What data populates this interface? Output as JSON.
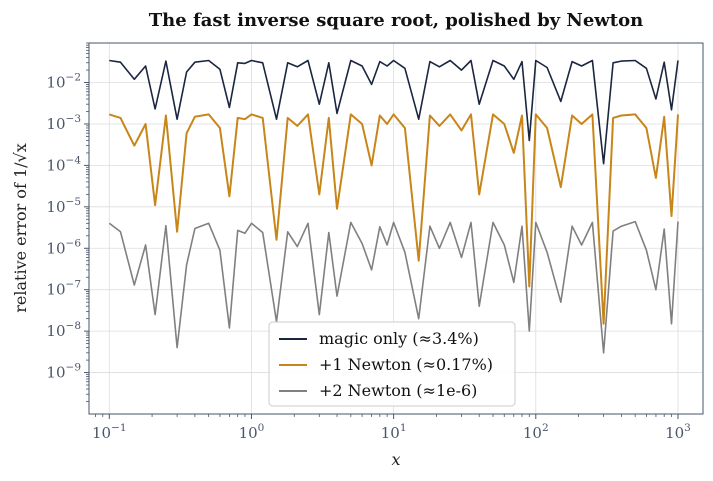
{
  "chart_data": {
    "type": "line",
    "title": "The fast inverse square root, polished by Newton",
    "xlabel": "x",
    "ylabel": "relative error of 1/√x",
    "xscale": "log",
    "yscale": "log",
    "xlim": [
      0.072,
      1500
    ],
    "ylim": [
      1e-10,
      0.09
    ],
    "grid": true,
    "legend_position": "lower center",
    "x_ticks": [
      {
        "base": "10",
        "exp": "−1",
        "value": 0.1
      },
      {
        "base": "10",
        "exp": "0",
        "value": 1
      },
      {
        "base": "10",
        "exp": "1",
        "value": 10
      },
      {
        "base": "10",
        "exp": "2",
        "value": 100
      },
      {
        "base": "10",
        "exp": "3",
        "value": 1000
      }
    ],
    "y_ticks": [
      {
        "base": "10",
        "exp": "−9",
        "value": 1e-09
      },
      {
        "base": "10",
        "exp": "−8",
        "value": 1e-08
      },
      {
        "base": "10",
        "exp": "−7",
        "value": 1e-07
      },
      {
        "base": "10",
        "exp": "−6",
        "value": 1e-06
      },
      {
        "base": "10",
        "exp": "−5",
        "value": 1e-05
      },
      {
        "base": "10",
        "exp": "−4",
        "value": 0.0001
      },
      {
        "base": "10",
        "exp": "−3",
        "value": 0.001
      },
      {
        "base": "10",
        "exp": "−2",
        "value": 0.01
      }
    ],
    "x": [
      0.1,
      0.12,
      0.15,
      0.18,
      0.21,
      0.25,
      0.3,
      0.35,
      0.4,
      0.5,
      0.6,
      0.7,
      0.8,
      0.9,
      1.0,
      1.2,
      1.5,
      1.8,
      2.1,
      2.5,
      3.0,
      3.5,
      4.0,
      5.0,
      6.0,
      7.0,
      8.0,
      9.0,
      10,
      12,
      15,
      18,
      21,
      25,
      30,
      35,
      40,
      50,
      60,
      70,
      80,
      90,
      100,
      120,
      150,
      180,
      210,
      250,
      300,
      350,
      400,
      500,
      600,
      700,
      800,
      900,
      1000
    ],
    "series": [
      {
        "name": "magic only (≈3.4%)",
        "color": "#1b2640",
        "values": [
          0.034,
          0.031,
          0.012,
          0.025,
          0.0023,
          0.033,
          0.0013,
          0.018,
          0.031,
          0.034,
          0.021,
          0.0025,
          0.03,
          0.029,
          0.034,
          0.03,
          0.0013,
          0.03,
          0.024,
          0.034,
          0.003,
          0.03,
          0.0018,
          0.034,
          0.025,
          0.009,
          0.032,
          0.025,
          0.034,
          0.022,
          0.0013,
          0.032,
          0.024,
          0.034,
          0.02,
          0.034,
          0.003,
          0.034,
          0.025,
          0.012,
          0.032,
          0.0004,
          0.034,
          0.023,
          0.0035,
          0.032,
          0.025,
          0.034,
          0.00011,
          0.03,
          0.033,
          0.034,
          0.022,
          0.004,
          0.031,
          0.0022,
          0.034
        ]
      },
      {
        "name": "+1 Newton (≈0.17%)",
        "color": "#c8861a",
        "values": [
          0.0017,
          0.0014,
          0.0003,
          0.001,
          1.1e-05,
          0.0016,
          2.5e-06,
          0.0006,
          0.0015,
          0.0017,
          0.0008,
          1.8e-05,
          0.0014,
          0.0013,
          0.0017,
          0.0014,
          1.6e-06,
          0.0014,
          0.0009,
          0.0017,
          2e-05,
          0.0014,
          9e-06,
          0.0017,
          0.001,
          0.0001,
          0.0016,
          0.001,
          0.0017,
          0.0008,
          5e-07,
          0.0016,
          0.0009,
          0.0017,
          0.0007,
          0.0017,
          2e-05,
          0.0017,
          0.001,
          0.0002,
          0.0016,
          1.2e-07,
          0.0017,
          0.0008,
          3e-05,
          0.0016,
          0.001,
          0.0017,
          1.5e-08,
          0.0014,
          0.0016,
          0.0017,
          0.0008,
          5e-05,
          0.0015,
          6e-06,
          0.0017
        ]
      },
      {
        "name": "+2 Newton (≈1e-6)",
        "color": "#808080",
        "values": [
          4e-06,
          2.5e-06,
          1.3e-07,
          1.2e-06,
          2.5e-08,
          3.5e-06,
          4e-09,
          4e-07,
          3e-06,
          4e-06,
          9e-07,
          1.2e-08,
          2.7e-06,
          2.3e-06,
          4e-06,
          2.4e-06,
          1.7e-08,
          2.5e-06,
          1.1e-06,
          4e-06,
          2.5e-08,
          2.4e-06,
          7e-08,
          4.2e-06,
          1.3e-06,
          3e-07,
          3.3e-06,
          1.2e-06,
          4.2e-06,
          8e-07,
          2e-08,
          3.4e-06,
          1e-06,
          4.2e-06,
          6e-07,
          4.2e-06,
          4e-08,
          4.2e-06,
          1.2e-06,
          1.5e-07,
          3.4e-06,
          1e-08,
          4.2e-06,
          8e-07,
          5e-08,
          3.4e-06,
          1.2e-06,
          4.2e-06,
          3e-09,
          2.6e-06,
          3.4e-06,
          4.4e-06,
          9e-07,
          1e-07,
          2.9e-06,
          1.5e-08,
          4.4e-06
        ]
      }
    ]
  }
}
